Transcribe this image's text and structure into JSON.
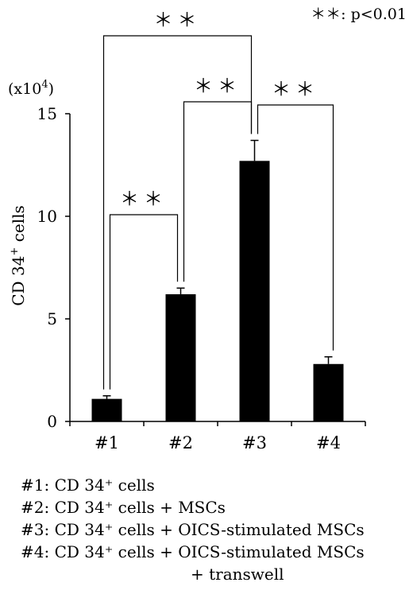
{
  "chart_data": {
    "type": "bar",
    "categories": [
      "#1",
      "#2",
      "#3",
      "#4"
    ],
    "values": [
      1.1,
      6.2,
      12.7,
      2.8
    ],
    "errors": [
      0.15,
      0.3,
      1.0,
      0.35
    ],
    "ylabel_base": "CD 34",
    "ylabel_sup": "+",
    "ylabel_rest": " cells",
    "unit_base": "(x10",
    "unit_sup": "4",
    "unit_close": ")",
    "ylim": [
      0,
      15
    ],
    "yticks": [
      "0",
      "5",
      "10",
      "15"
    ],
    "significance": [
      {
        "from": 0,
        "to": 1,
        "label": "＊＊"
      },
      {
        "from": 1,
        "to": 2,
        "label": "＊＊"
      },
      {
        "from": 2,
        "to": 3,
        "label": "＊＊"
      },
      {
        "from": 0,
        "to": 2,
        "label": "＊＊"
      }
    ],
    "significance_note": "＊＊: p<0.01",
    "colors": {
      "bar": "#000000"
    }
  },
  "legend": [
    "#1: CD 34⁺ cells",
    "#2: CD 34⁺ cells + MSCs",
    "#3: CD 34⁺ cells + OICS-stimulated MSCs",
    "#4: CD 34⁺ cells + OICS-stimulated MSCs"
  ],
  "legend_continuation": "+ transwell"
}
